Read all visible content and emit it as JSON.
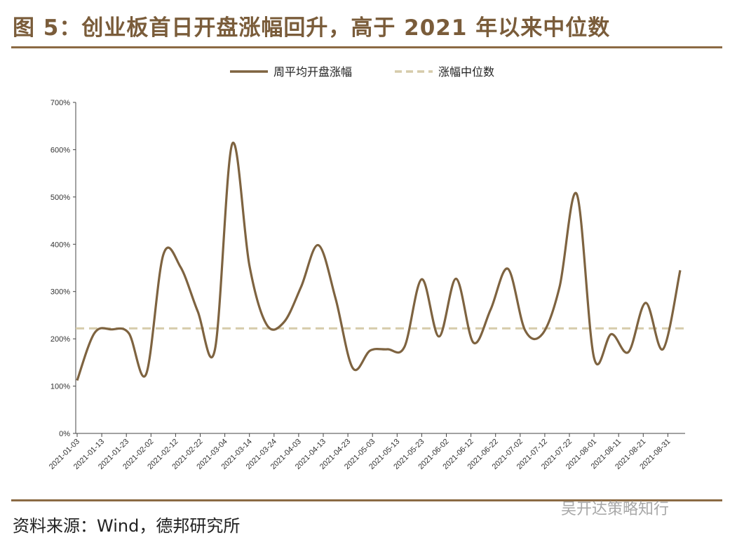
{
  "header": {
    "title": "图 5：创业板首日开盘涨幅回升，高于 2021 年以来中位数"
  },
  "footer": {
    "source": "资料来源：Wind，德邦研究所",
    "watermark": "吴开达策略知行"
  },
  "chart_data": {
    "type": "line",
    "title": "",
    "xlabel": "",
    "ylabel": "",
    "ylim": [
      0,
      700
    ],
    "yticks": [
      "0%",
      "100%",
      "200%",
      "300%",
      "400%",
      "500%",
      "600%",
      "700%"
    ],
    "x_tick_labels": [
      "2021-01-03",
      "2021-01-13",
      "2021-01-23",
      "2021-02-02",
      "2021-02-12",
      "2021-02-22",
      "2021-03-04",
      "2021-03-14",
      "2021-03-24",
      "2021-04-03",
      "2021-04-13",
      "2021-04-23",
      "2021-05-03",
      "2021-05-13",
      "2021-05-23",
      "2021-06-02",
      "2021-06-12",
      "2021-06-22",
      "2021-07-02",
      "2021-07-12",
      "2021-07-22",
      "2021-08-01",
      "2021-08-11",
      "2021-08-21",
      "2021-08-31"
    ],
    "legend_position": "top-center",
    "grid": false,
    "series": [
      {
        "name": "周平均开盘涨幅",
        "color": "#7e6340",
        "style": "solid",
        "points": [
          [
            "2021-01-03",
            112
          ],
          [
            "2021-01-10",
            212
          ],
          [
            "2021-01-17",
            220
          ],
          [
            "2021-01-24",
            212
          ],
          [
            "2021-01-31",
            125
          ],
          [
            "2021-02-07",
            378
          ],
          [
            "2021-02-14",
            352
          ],
          [
            "2021-02-21",
            258
          ],
          [
            "2021-02-28",
            178
          ],
          [
            "2021-03-07",
            612
          ],
          [
            "2021-03-14",
            355
          ],
          [
            "2021-03-21",
            230
          ],
          [
            "2021-03-28",
            235
          ],
          [
            "2021-04-04",
            310
          ],
          [
            "2021-04-11",
            398
          ],
          [
            "2021-04-18",
            285
          ],
          [
            "2021-04-25",
            138
          ],
          [
            "2021-05-02",
            175
          ],
          [
            "2021-05-09",
            178
          ],
          [
            "2021-05-16",
            183
          ],
          [
            "2021-05-23",
            326
          ],
          [
            "2021-05-30",
            205
          ],
          [
            "2021-06-06",
            327
          ],
          [
            "2021-06-13",
            192
          ],
          [
            "2021-06-20",
            262
          ],
          [
            "2021-06-27",
            348
          ],
          [
            "2021-07-04",
            218
          ],
          [
            "2021-07-11",
            210
          ],
          [
            "2021-07-18",
            310
          ],
          [
            "2021-07-25",
            506
          ],
          [
            "2021-08-01",
            160
          ],
          [
            "2021-08-08",
            210
          ],
          [
            "2021-08-15",
            172
          ],
          [
            "2021-08-22",
            276
          ],
          [
            "2021-08-29",
            178
          ],
          [
            "2021-09-05",
            345
          ]
        ]
      },
      {
        "name": "涨幅中位数",
        "color": "#d6cbaa",
        "style": "dashed",
        "value": 222
      }
    ]
  }
}
